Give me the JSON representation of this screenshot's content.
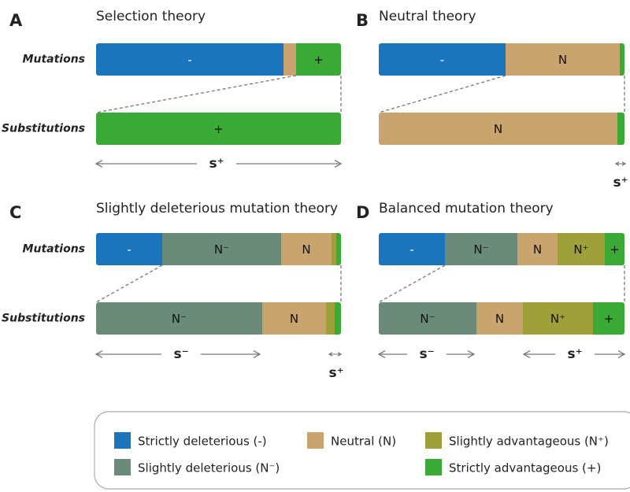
{
  "row_labels": [
    "Mutations",
    "Substitutions"
  ],
  "panels": [
    {
      "letter": "A",
      "title": "Selection theory",
      "mutations": [
        "-",
        "+"
      ],
      "substitutions": [
        "+"
      ],
      "scale": [
        "s⁺"
      ]
    },
    {
      "letter": "B",
      "title": "Neutral theory",
      "mutations": [
        "-",
        "N"
      ],
      "substitutions": [
        "N"
      ],
      "scale": [
        "s⁺"
      ]
    },
    {
      "letter": "C",
      "title": "Slightly deleterious mutation theory",
      "mutations": [
        "-",
        "N⁻",
        "N"
      ],
      "substitutions": [
        "N⁻",
        "N"
      ],
      "scale": [
        "s⁻",
        "s⁺"
      ]
    },
    {
      "letter": "D",
      "title": "Balanced mutation theory",
      "mutations": [
        "-",
        "N⁻",
        "N",
        "N⁺",
        "+"
      ],
      "substitutions": [
        "N⁻",
        "N",
        "N⁺",
        "+"
      ],
      "scale": [
        "s⁻",
        "s⁺"
      ]
    }
  ],
  "legend": [
    "Strictly deleterious (-)",
    "Neutral (N)",
    "Slightly advantageous (N⁺)",
    "Slightly deleterious (N⁻)",
    "Strictly advantageous (+)"
  ]
}
